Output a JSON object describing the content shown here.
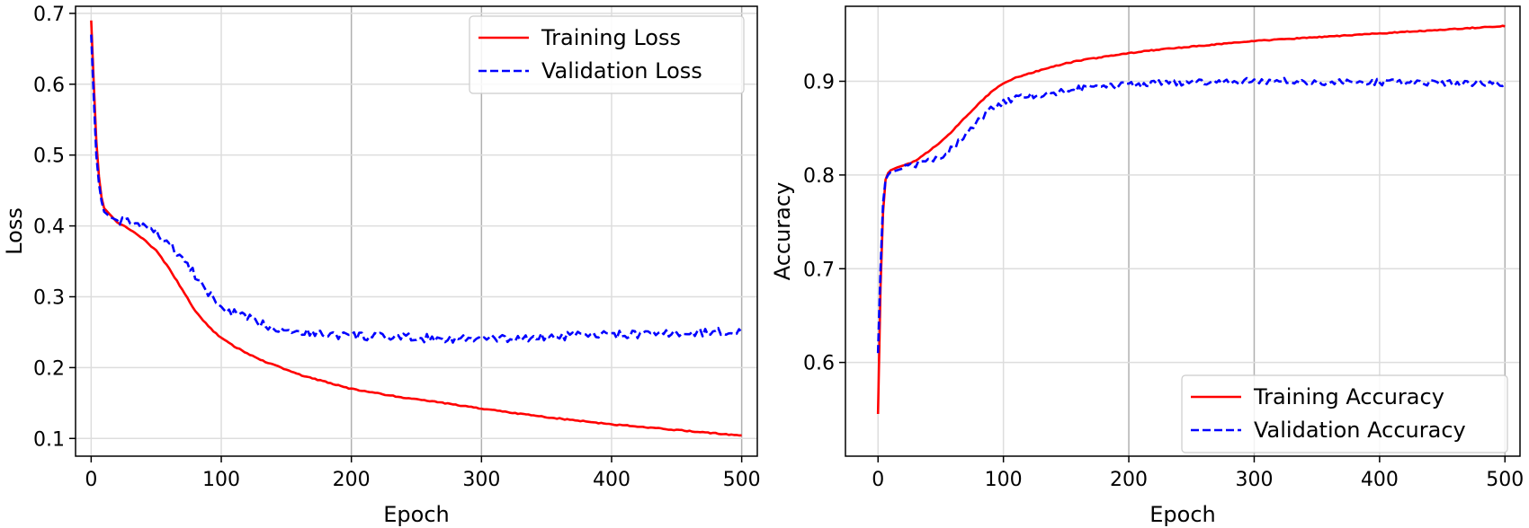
{
  "chart_data": [
    {
      "type": "line",
      "title": "",
      "xlabel": "Epoch",
      "ylabel": "Loss",
      "xlim": [
        -12,
        512
      ],
      "ylim": [
        0.075,
        0.71
      ],
      "xticks": [
        0,
        100,
        200,
        300,
        400,
        500
      ],
      "yticks": [
        0.1,
        0.2,
        0.3,
        0.4,
        0.5,
        0.6,
        0.7
      ],
      "xtick_labels": [
        "0",
        "100",
        "200",
        "300",
        "400",
        "500"
      ],
      "ytick_labels": [
        "0.1",
        "0.2",
        "0.3",
        "0.4",
        "0.5",
        "0.6",
        "0.7"
      ],
      "grid": true,
      "legend_position": "top-right",
      "series": [
        {
          "name": "Training Loss",
          "color": "#ff0000",
          "style": "solid",
          "x": [
            0,
            2,
            4,
            6,
            8,
            10,
            15,
            20,
            30,
            40,
            50,
            60,
            70,
            80,
            90,
            100,
            110,
            120,
            130,
            140,
            150,
            160,
            170,
            180,
            190,
            200,
            225,
            250,
            275,
            300,
            325,
            350,
            375,
            400,
            425,
            450,
            475,
            500
          ],
          "y": [
            0.69,
            0.6,
            0.52,
            0.47,
            0.44,
            0.425,
            0.415,
            0.405,
            0.395,
            0.382,
            0.365,
            0.34,
            0.31,
            0.28,
            0.258,
            0.242,
            0.23,
            0.22,
            0.211,
            0.204,
            0.197,
            0.19,
            0.185,
            0.18,
            0.175,
            0.17,
            0.162,
            0.155,
            0.149,
            0.142,
            0.136,
            0.13,
            0.125,
            0.12,
            0.116,
            0.112,
            0.108,
            0.104
          ]
        },
        {
          "name": "Validation Loss",
          "color": "#0000ff",
          "style": "dashed",
          "x": [
            0,
            2,
            4,
            6,
            8,
            10,
            15,
            20,
            30,
            40,
            50,
            60,
            70,
            80,
            90,
            100,
            110,
            120,
            130,
            140,
            150,
            160,
            170,
            180,
            190,
            200,
            225,
            250,
            275,
            300,
            325,
            350,
            375,
            400,
            425,
            450,
            475,
            500
          ],
          "y": [
            0.67,
            0.58,
            0.5,
            0.46,
            0.435,
            0.42,
            0.412,
            0.408,
            0.405,
            0.4,
            0.39,
            0.375,
            0.355,
            0.33,
            0.305,
            0.285,
            0.277,
            0.27,
            0.263,
            0.257,
            0.254,
            0.251,
            0.249,
            0.247,
            0.246,
            0.245,
            0.243,
            0.242,
            0.241,
            0.24,
            0.241,
            0.243,
            0.245,
            0.246,
            0.247,
            0.248,
            0.25,
            0.252
          ]
        }
      ]
    },
    {
      "type": "line",
      "title": "",
      "xlabel": "Epoch",
      "ylabel": "Accuracy",
      "xlim": [
        -26,
        512
      ],
      "ylim": [
        0.5,
        0.98
      ],
      "xticks": [
        0,
        100,
        200,
        300,
        400,
        500
      ],
      "yticks": [
        0.6,
        0.7,
        0.8,
        0.9
      ],
      "xtick_labels": [
        "0",
        "100",
        "200",
        "300",
        "400",
        "500"
      ],
      "ytick_labels": [
        "0.6",
        "0.7",
        "0.8",
        "0.9"
      ],
      "grid": true,
      "legend_position": "bottom-right",
      "series": [
        {
          "name": "Training Accuracy",
          "color": "#ff0000",
          "style": "solid",
          "x": [
            0,
            2,
            4,
            6,
            8,
            10,
            15,
            20,
            30,
            40,
            50,
            60,
            70,
            80,
            90,
            100,
            110,
            120,
            140,
            160,
            180,
            200,
            225,
            250,
            275,
            300,
            325,
            350,
            375,
            400,
            425,
            450,
            475,
            500
          ],
          "y": [
            0.545,
            0.68,
            0.76,
            0.795,
            0.802,
            0.805,
            0.808,
            0.81,
            0.815,
            0.825,
            0.835,
            0.848,
            0.862,
            0.876,
            0.888,
            0.898,
            0.904,
            0.908,
            0.916,
            0.922,
            0.926,
            0.93,
            0.934,
            0.937,
            0.94,
            0.943,
            0.945,
            0.947,
            0.949,
            0.951,
            0.953,
            0.955,
            0.957,
            0.959
          ]
        },
        {
          "name": "Validation Accuracy",
          "color": "#0000ff",
          "style": "dashed",
          "x": [
            0,
            2,
            4,
            6,
            8,
            10,
            15,
            20,
            30,
            40,
            50,
            60,
            70,
            80,
            90,
            100,
            110,
            120,
            140,
            160,
            180,
            200,
            225,
            250,
            275,
            300,
            325,
            350,
            375,
            400,
            425,
            450,
            475,
            500
          ],
          "y": [
            0.61,
            0.7,
            0.77,
            0.795,
            0.8,
            0.803,
            0.805,
            0.807,
            0.81,
            0.815,
            0.82,
            0.83,
            0.843,
            0.858,
            0.87,
            0.878,
            0.882,
            0.884,
            0.888,
            0.892,
            0.894,
            0.896,
            0.898,
            0.899,
            0.9,
            0.9,
            0.9,
            0.899,
            0.9,
            0.899,
            0.899,
            0.898,
            0.898,
            0.897
          ]
        }
      ]
    }
  ]
}
